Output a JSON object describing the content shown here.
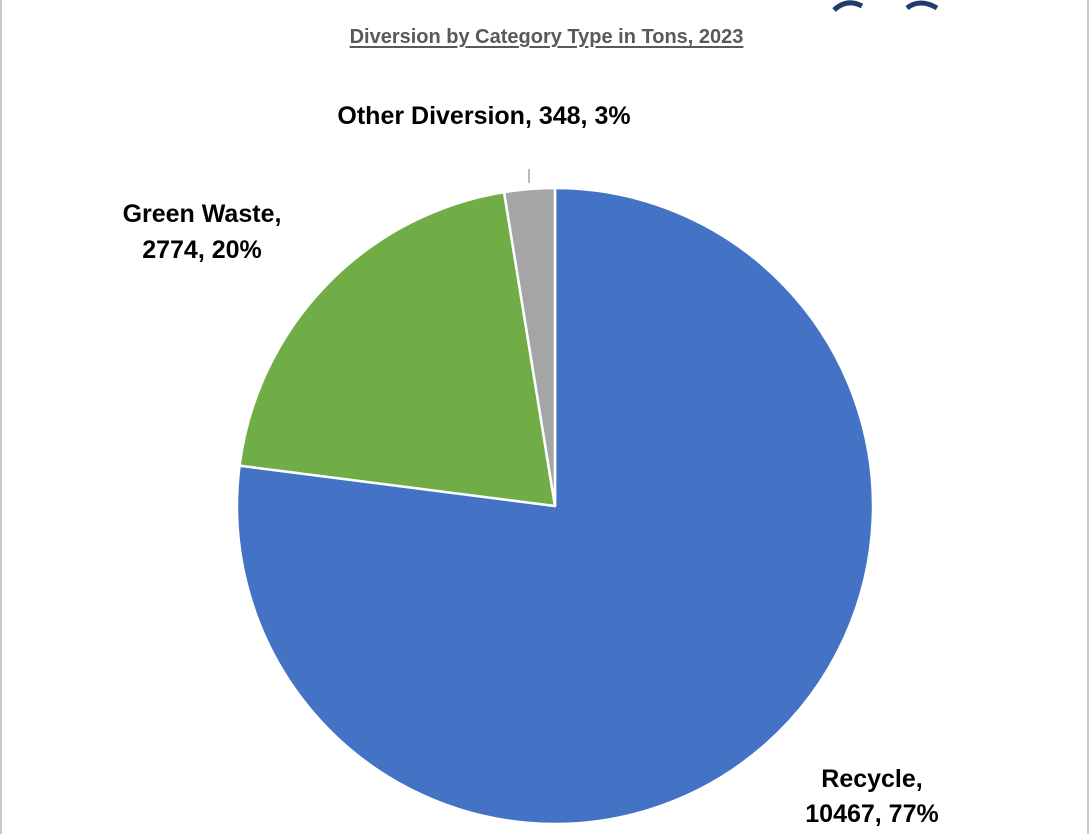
{
  "chart_data": {
    "type": "pie",
    "title": "Diversion by Category Type in Tons, 2023",
    "slices": [
      {
        "label": "Recycle",
        "value": 10467,
        "percent": 77,
        "color": "#4472C4",
        "label_lines": [
          "Recycle,",
          "10467, 77%"
        ]
      },
      {
        "label": "Green Waste",
        "value": 2774,
        "percent": 20,
        "color": "#70AD47",
        "label_lines": [
          "Green Waste,",
          "2774, 20%"
        ]
      },
      {
        "label": "Other Diversion",
        "value": 348,
        "percent": 3,
        "color": "#A5A5A5",
        "label_lines": [
          "Other Diversion, 348, 3%"
        ]
      }
    ],
    "legend": "none",
    "start_angle": "12 o'clock",
    "direction": "clockwise"
  }
}
